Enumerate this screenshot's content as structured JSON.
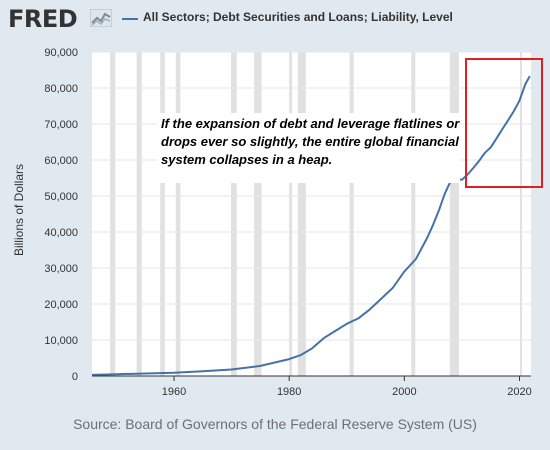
{
  "header": {
    "logo_text": "FRED",
    "logo_icon": "chart-line-icon",
    "legend_label": "All Sectors; Debt Securities and Loans; Liability, Level",
    "legend_color": "#4572a7"
  },
  "annotation": {
    "text": "If the expansion of debt and leverage flatlines or drops ever so slightly, the entire global financial system collapses in a heap.",
    "arrow_color": "#c0392b",
    "highlight_box_color": "#e02020"
  },
  "source": "Source: Board of Governors of the Federal Reserve System (US)",
  "colors": {
    "background": "#e1e9f0",
    "plot_background": "#ffffff",
    "recession_shading": "#e1e1e1",
    "gridline": "#e6e6e6",
    "line": "#4572a7"
  },
  "chart_data": {
    "type": "line",
    "title": "",
    "ylabel": "Billions of Dollars",
    "xlabel": "",
    "xlim": [
      1945.75,
      2022
    ],
    "ylim": [
      0,
      90000
    ],
    "x_ticks": [
      1960,
      1980,
      2000,
      2020
    ],
    "x_tick_labels": [
      "1960",
      "1980",
      "2000",
      "2020"
    ],
    "y_ticks": [
      0,
      10000,
      20000,
      30000,
      40000,
      50000,
      60000,
      70000,
      80000,
      90000
    ],
    "y_tick_labels": [
      "0",
      "10,000",
      "20,000",
      "30,000",
      "40,000",
      "50,000",
      "60,000",
      "70,000",
      "80,000",
      "90,000"
    ],
    "grid": true,
    "legend_position": "top",
    "recessions": [
      [
        1948.9,
        1949.8
      ],
      [
        1953.5,
        1954.4
      ],
      [
        1957.6,
        1958.4
      ],
      [
        1960.3,
        1961.1
      ],
      [
        1969.9,
        1970.9
      ],
      [
        1973.9,
        1975.2
      ],
      [
        1980.0,
        1980.5
      ],
      [
        1981.5,
        1982.9
      ],
      [
        1990.5,
        1991.2
      ],
      [
        2001.2,
        2001.9
      ],
      [
        2007.9,
        2009.5
      ],
      [
        2020.1,
        2020.4
      ]
    ],
    "series": [
      {
        "name": "All Sectors; Debt Securities and Loans; Liability, Level",
        "x": [
          1945.75,
          1950,
          1955,
          1960,
          1965,
          1970,
          1975,
          1980,
          1982,
          1984,
          1986,
          1988,
          1990,
          1992,
          1994,
          1996,
          1998,
          2000,
          2002,
          2004,
          2005,
          2006,
          2007,
          2008,
          2009,
          2010,
          2011,
          2012,
          2013,
          2014,
          2015,
          2016,
          2017,
          2018,
          2019,
          2020,
          2021,
          2021.8
        ],
        "y": [
          300,
          500,
          700,
          900,
          1300,
          1800,
          2800,
          4700,
          5800,
          7700,
          10500,
          12500,
          14500,
          16000,
          18500,
          21500,
          24500,
          29000,
          32500,
          38500,
          42000,
          46000,
          50500,
          54000,
          54800,
          54500,
          56000,
          57800,
          59800,
          62000,
          63500,
          66000,
          68500,
          71000,
          73500,
          76500,
          81000,
          83300
        ]
      }
    ]
  }
}
